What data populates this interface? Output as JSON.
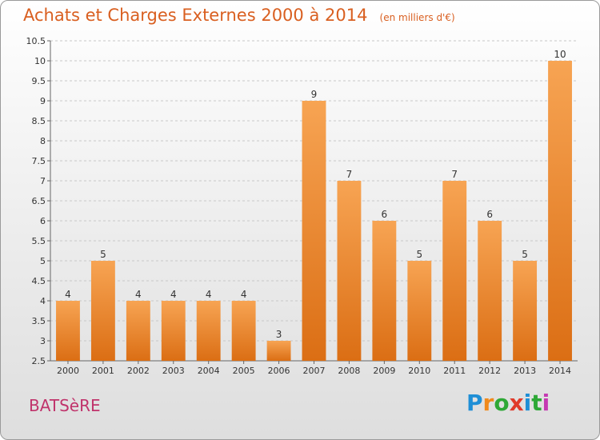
{
  "title": "Achats et Charges Externes 2000 à 2014",
  "unit_label": "(en milliers d'€)",
  "commune": "BATSèRE",
  "brand": {
    "letters": [
      "P",
      "r",
      "o",
      "x",
      "i",
      "t",
      "i"
    ],
    "colors": [
      "#1f8fd6",
      "#f08a1c",
      "#2ea836",
      "#e03a2a",
      "#1f8fd6",
      "#2ea836",
      "#c53ab2"
    ]
  },
  "colors": {
    "bar_top": "#f7a453",
    "bar_bottom": "#db6e14",
    "title": "#d95f20",
    "commune": "#c0336b"
  },
  "chart_data": {
    "type": "bar",
    "title": "Achats et Charges Externes 2000 à 2014",
    "categories": [
      "2000",
      "2001",
      "2002",
      "2003",
      "2004",
      "2005",
      "2006",
      "2007",
      "2008",
      "2009",
      "2010",
      "2011",
      "2012",
      "2013",
      "2014"
    ],
    "values": [
      4,
      5,
      4,
      4,
      4,
      4,
      3,
      9,
      7,
      6,
      5,
      7,
      6,
      5,
      10
    ],
    "xlabel": "",
    "ylabel": "",
    "ylim": [
      2.5,
      10.5
    ],
    "yticks": [
      "2.5",
      "3",
      "3.5",
      "4",
      "4.5",
      "5",
      "5.5",
      "6",
      "6.5",
      "7",
      "7.5",
      "8",
      "8.5",
      "9",
      "9.5",
      "10",
      "10.5"
    ],
    "grid": true,
    "data_labels": true
  }
}
